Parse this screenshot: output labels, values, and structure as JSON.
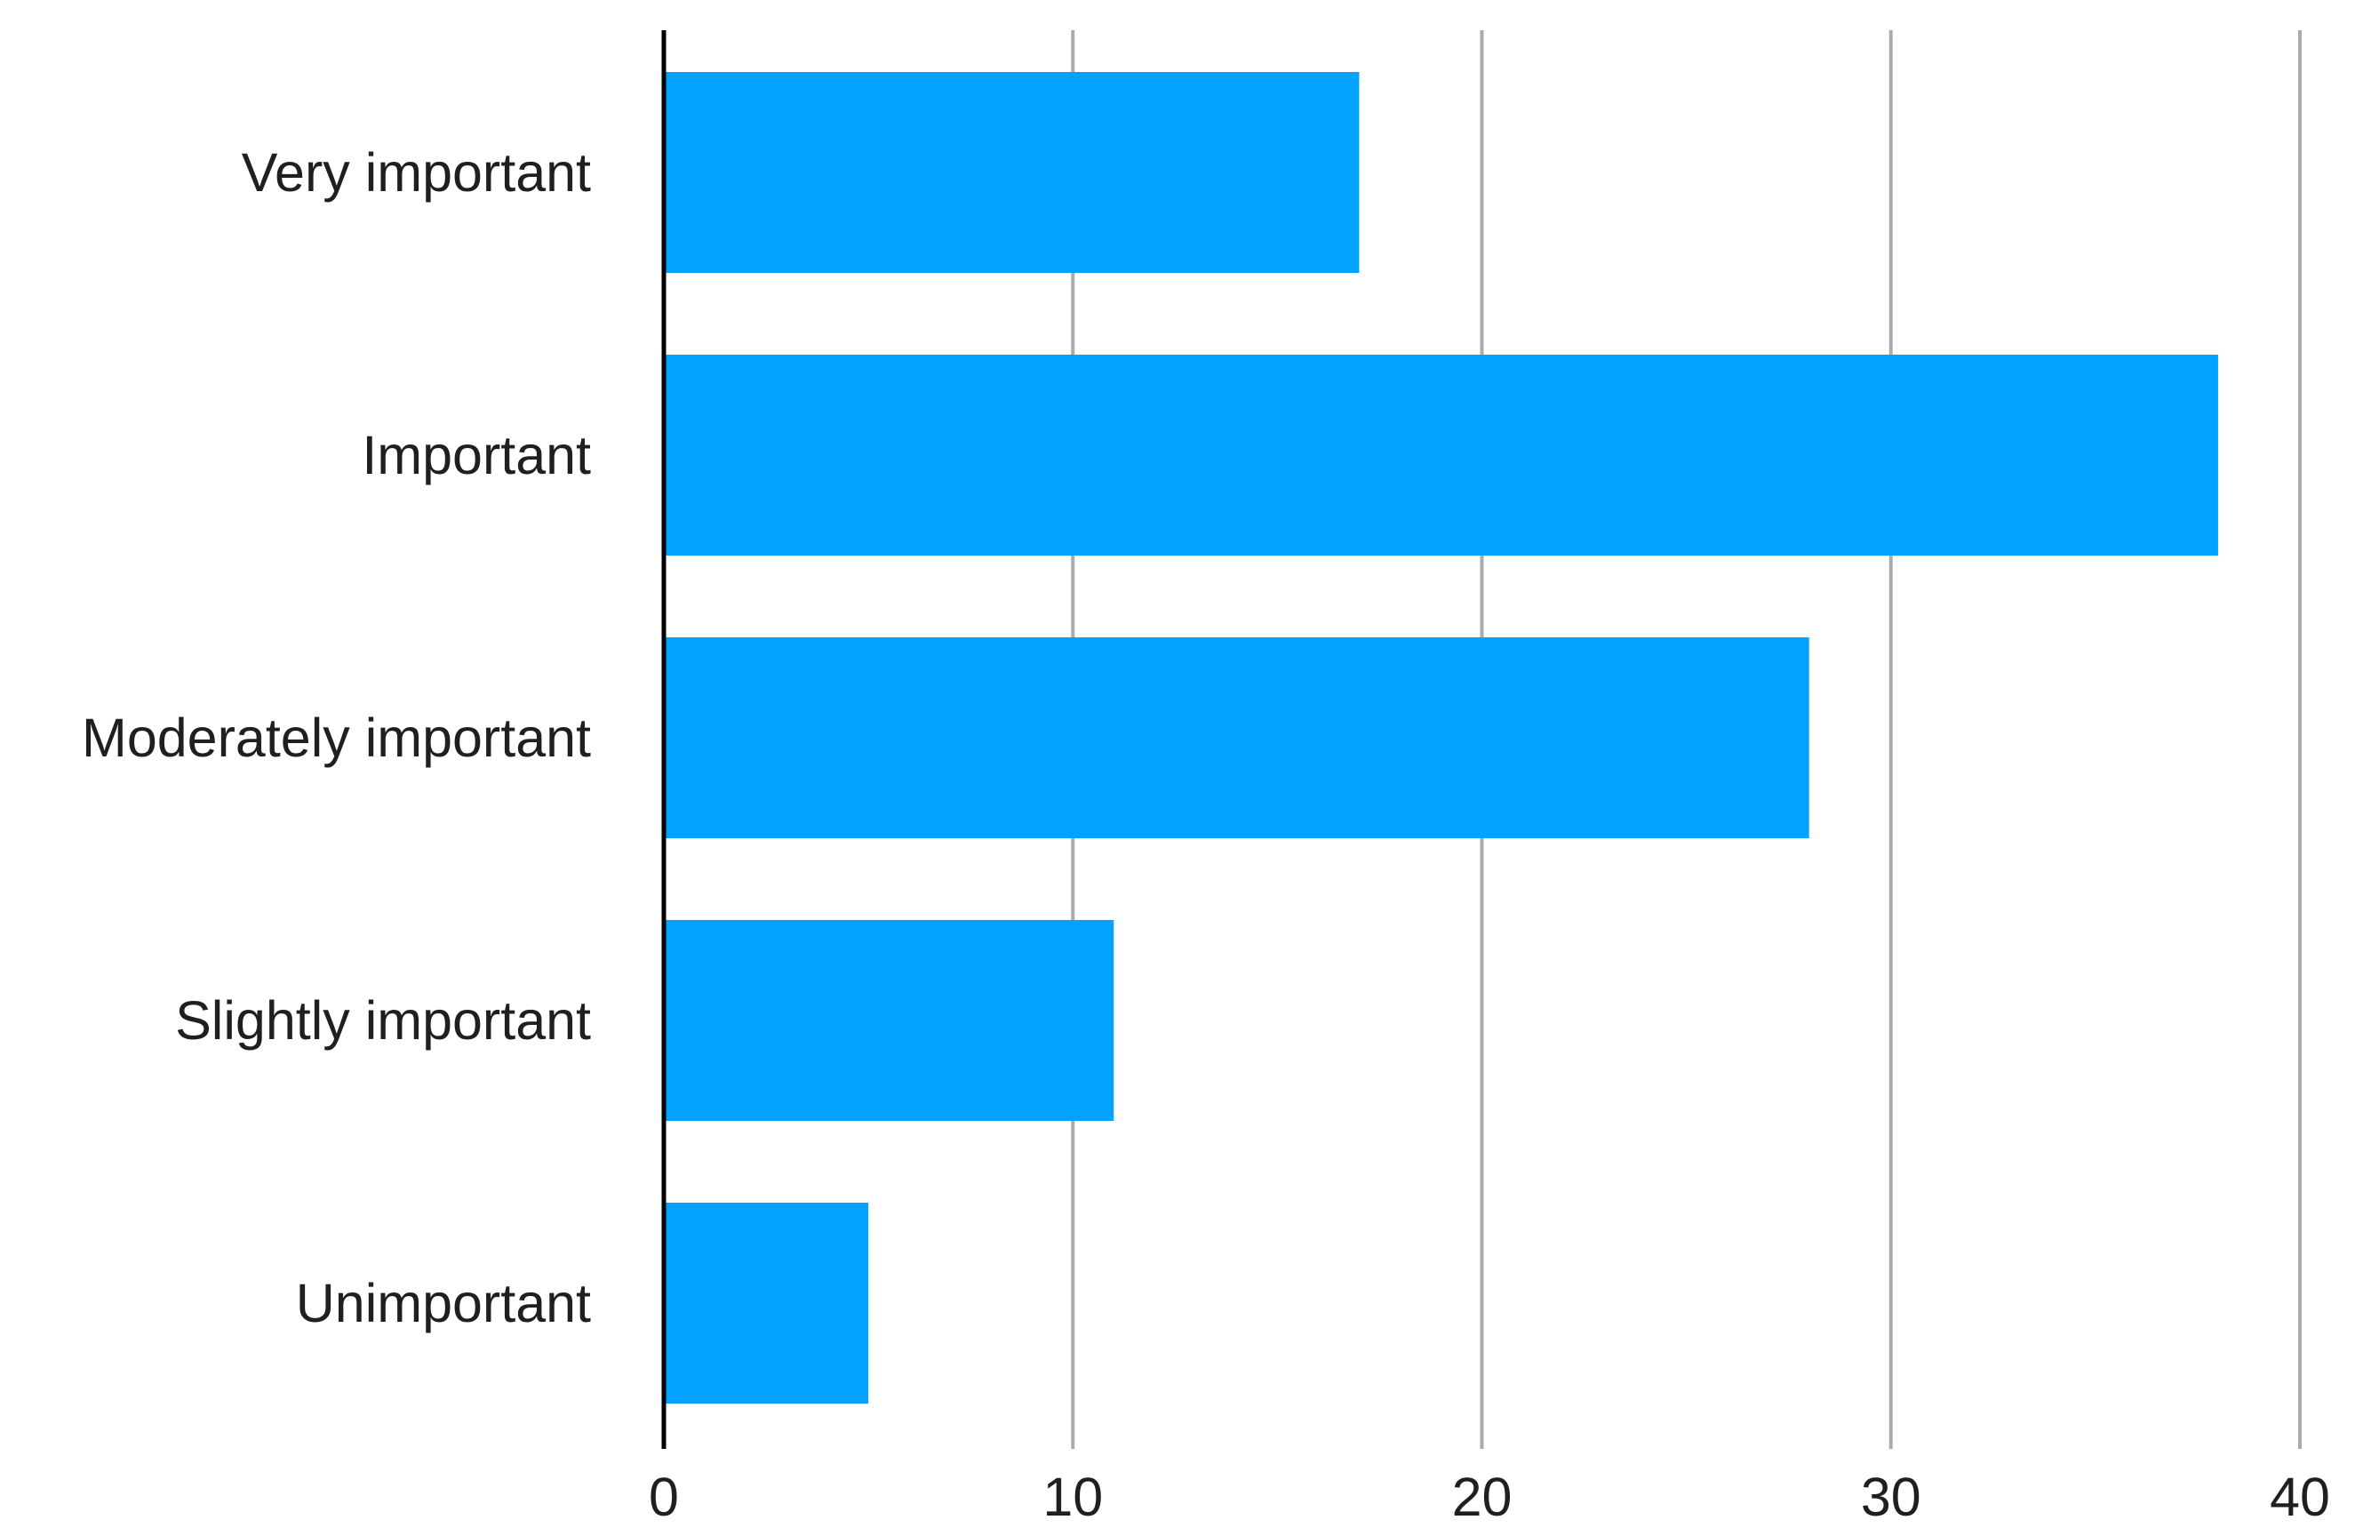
{
  "chart_data": {
    "type": "bar",
    "orientation": "horizontal",
    "categories": [
      "Very important",
      "Important",
      "Moderately important",
      "Slightly important",
      "Unimportant"
    ],
    "values": [
      17,
      38,
      28,
      11,
      5
    ],
    "x_ticks": [
      "0",
      "10",
      "20",
      "30",
      "40"
    ],
    "xlim": [
      0,
      40
    ],
    "grid": "vertical",
    "legend": "none",
    "bar_color": "#03a2ff"
  }
}
